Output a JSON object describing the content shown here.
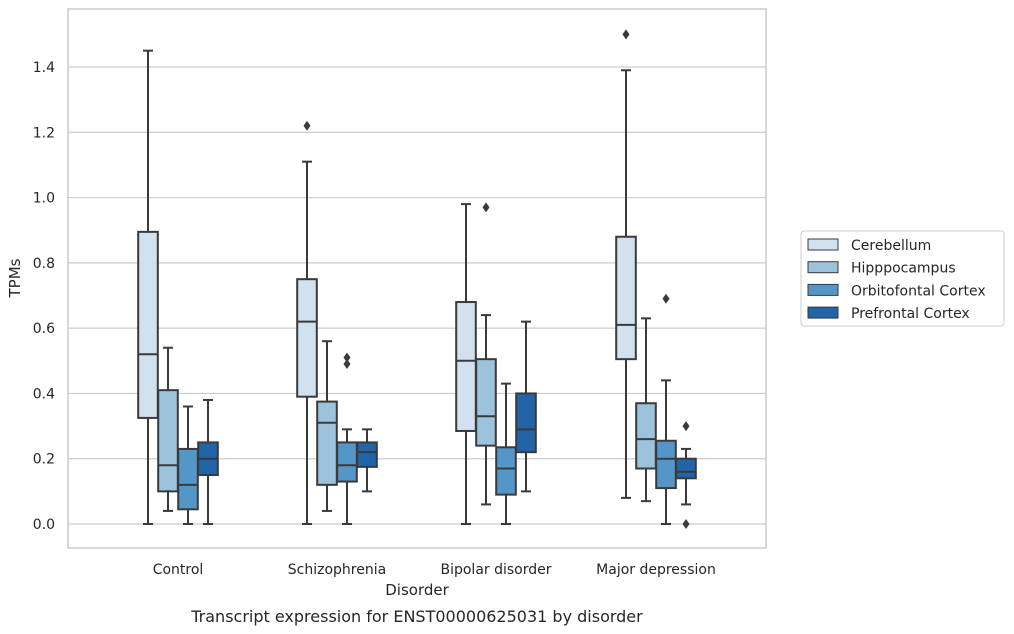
{
  "chart_data": {
    "type": "box",
    "caption": "Transcript expression for ENST00000625031 by disorder",
    "xlabel": "Disorder",
    "ylabel": "TPMs",
    "ylim": [
      -0.07,
      1.58
    ],
    "yticks": [
      0.0,
      0.2,
      0.4,
      0.6,
      0.8,
      1.0,
      1.2,
      1.4
    ],
    "ytick_labels": [
      "0.0",
      "0.2",
      "0.4",
      "0.6",
      "0.8",
      "1.0",
      "1.2",
      "1.4"
    ],
    "grid": "horizontal",
    "legend_position": "right",
    "categories": [
      "Control",
      "Schizophrenia",
      "Bipolar disorder",
      "Major depression"
    ],
    "series": [
      {
        "name": "Cerebellum",
        "color": "#d1e1f0",
        "boxes": [
          {
            "whisker_low": 0.0,
            "q1": 0.325,
            "median": 0.52,
            "q3": 0.895,
            "whisker_high": 1.45,
            "outliers": []
          },
          {
            "whisker_low": 0.0,
            "q1": 0.39,
            "median": 0.62,
            "q3": 0.75,
            "whisker_high": 1.11,
            "outliers": [
              1.22
            ]
          },
          {
            "whisker_low": 0.0,
            "q1": 0.285,
            "median": 0.5,
            "q3": 0.68,
            "whisker_high": 0.98,
            "outliers": []
          },
          {
            "whisker_low": 0.08,
            "q1": 0.505,
            "median": 0.61,
            "q3": 0.88,
            "whisker_high": 1.39,
            "outliers": [
              1.5
            ]
          }
        ]
      },
      {
        "name": "Hipppocampus",
        "color": "#9cc2dc",
        "boxes": [
          {
            "whisker_low": 0.04,
            "q1": 0.1,
            "median": 0.18,
            "q3": 0.41,
            "whisker_high": 0.54,
            "outliers": []
          },
          {
            "whisker_low": 0.04,
            "q1": 0.12,
            "median": 0.31,
            "q3": 0.375,
            "whisker_high": 0.56,
            "outliers": []
          },
          {
            "whisker_low": 0.06,
            "q1": 0.24,
            "median": 0.33,
            "q3": 0.505,
            "whisker_high": 0.64,
            "outliers": [
              0.97
            ]
          },
          {
            "whisker_low": 0.07,
            "q1": 0.17,
            "median": 0.26,
            "q3": 0.37,
            "whisker_high": 0.63,
            "outliers": []
          }
        ]
      },
      {
        "name": "Orbitofontal Cortex",
        "color": "#5496c8",
        "boxes": [
          {
            "whisker_low": 0.0,
            "q1": 0.045,
            "median": 0.12,
            "q3": 0.23,
            "whisker_high": 0.36,
            "outliers": []
          },
          {
            "whisker_low": 0.0,
            "q1": 0.13,
            "median": 0.18,
            "q3": 0.25,
            "whisker_high": 0.29,
            "outliers": [
              0.49,
              0.51
            ]
          },
          {
            "whisker_low": 0.0,
            "q1": 0.09,
            "median": 0.17,
            "q3": 0.235,
            "whisker_high": 0.43,
            "outliers": []
          },
          {
            "whisker_low": 0.0,
            "q1": 0.11,
            "median": 0.2,
            "q3": 0.255,
            "whisker_high": 0.44,
            "outliers": [
              0.69
            ]
          }
        ]
      },
      {
        "name": "Prefrontal Cortex",
        "color": "#2164a8",
        "boxes": [
          {
            "whisker_low": 0.0,
            "q1": 0.15,
            "median": 0.2,
            "q3": 0.25,
            "whisker_high": 0.38,
            "outliers": []
          },
          {
            "whisker_low": 0.1,
            "q1": 0.175,
            "median": 0.22,
            "q3": 0.25,
            "whisker_high": 0.29,
            "outliers": []
          },
          {
            "whisker_low": 0.1,
            "q1": 0.22,
            "median": 0.29,
            "q3": 0.4,
            "whisker_high": 0.62,
            "outliers": []
          },
          {
            "whisker_low": 0.06,
            "q1": 0.14,
            "median": 0.16,
            "q3": 0.2,
            "whisker_high": 0.23,
            "outliers": [
              0.3,
              0.0
            ]
          }
        ]
      }
    ]
  }
}
